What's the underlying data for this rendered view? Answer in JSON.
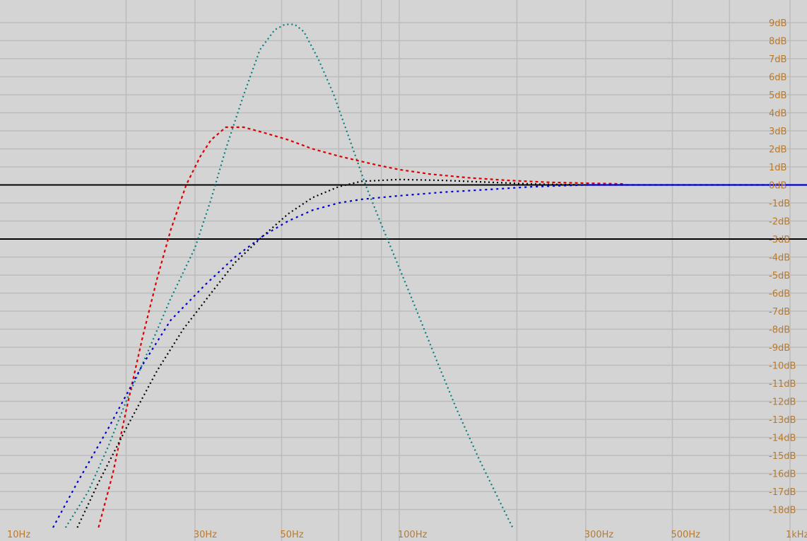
{
  "chart_data": {
    "type": "line",
    "title": "",
    "xlabel": "",
    "ylabel": "",
    "x_scale": "log",
    "xlim": [
      10,
      1000
    ],
    "ylim": [
      -19,
      9.5
    ],
    "grid": true,
    "x_ticks": [
      {
        "value": 10,
        "label": "10Hz"
      },
      {
        "value": 30,
        "label": "30Hz"
      },
      {
        "value": 50,
        "label": "50Hz"
      },
      {
        "value": 100,
        "label": "100Hz"
      },
      {
        "value": 300,
        "label": "300Hz"
      },
      {
        "value": 500,
        "label": "500Hz"
      },
      {
        "value": 1000,
        "label": "1kHz"
      }
    ],
    "y_ticks": [
      {
        "value": 9,
        "label": "9dB"
      },
      {
        "value": 8,
        "label": "8dB"
      },
      {
        "value": 7,
        "label": "7dB"
      },
      {
        "value": 6,
        "label": "6dB"
      },
      {
        "value": 5,
        "label": "5dB"
      },
      {
        "value": 4,
        "label": "4dB"
      },
      {
        "value": 3,
        "label": "3dB"
      },
      {
        "value": 2,
        "label": "2dB"
      },
      {
        "value": 1,
        "label": "1dB"
      },
      {
        "value": 0,
        "label": "0dB"
      },
      {
        "value": -1,
        "label": "-1dB"
      },
      {
        "value": -2,
        "label": "-2dB"
      },
      {
        "value": -3,
        "label": "-3dB"
      },
      {
        "value": -4,
        "label": "-4dB"
      },
      {
        "value": -5,
        "label": "-5dB"
      },
      {
        "value": -6,
        "label": "-6dB"
      },
      {
        "value": -7,
        "label": "-7dB"
      },
      {
        "value": -8,
        "label": "-8dB"
      },
      {
        "value": -9,
        "label": "-9dB"
      },
      {
        "value": -10,
        "label": "-10dB"
      },
      {
        "value": -11,
        "label": "-11dB"
      },
      {
        "value": -12,
        "label": "-12dB"
      },
      {
        "value": -13,
        "label": "-13dB"
      },
      {
        "value": -14,
        "label": "-14dB"
      },
      {
        "value": -15,
        "label": "-15dB"
      },
      {
        "value": -16,
        "label": "-16dB"
      },
      {
        "value": -17,
        "label": "-17dB"
      },
      {
        "value": -18,
        "label": "-18dB"
      }
    ],
    "reference_lines": [
      {
        "y": 0,
        "color": "#000000"
      },
      {
        "y": -3,
        "color": "#000000"
      }
    ],
    "series": [
      {
        "color": "#008080",
        "dash": "2 4",
        "points": [
          [
            14,
            -19
          ],
          [
            16,
            -17
          ],
          [
            18,
            -14.5
          ],
          [
            20,
            -12
          ],
          [
            23,
            -9
          ],
          [
            26,
            -6.3
          ],
          [
            30,
            -3.5
          ],
          [
            33,
            -0.8
          ],
          [
            36,
            2
          ],
          [
            40,
            5
          ],
          [
            44,
            7.5
          ],
          [
            48,
            8.6
          ],
          [
            51,
            8.9
          ],
          [
            54,
            8.9
          ],
          [
            57,
            8.5
          ],
          [
            62,
            7
          ],
          [
            68,
            5
          ],
          [
            75,
            2.4
          ],
          [
            82,
            0
          ],
          [
            90,
            -2.2
          ],
          [
            100,
            -4.6
          ],
          [
            110,
            -6.8
          ],
          [
            125,
            -9.8
          ],
          [
            140,
            -12.4
          ],
          [
            160,
            -15.2
          ],
          [
            185,
            -18
          ],
          [
            195,
            -19
          ]
        ]
      },
      {
        "color": "#e00000",
        "dash": "4 4",
        "points": [
          [
            17,
            -19
          ],
          [
            18.5,
            -16
          ],
          [
            20,
            -12.5
          ],
          [
            22,
            -8.5
          ],
          [
            24,
            -5.2
          ],
          [
            26,
            -2.5
          ],
          [
            28.5,
            0
          ],
          [
            31,
            1.6
          ],
          [
            33,
            2.5
          ],
          [
            36,
            3.2
          ],
          [
            40,
            3.2
          ],
          [
            45,
            2.9
          ],
          [
            52,
            2.5
          ],
          [
            60,
            2
          ],
          [
            70,
            1.6
          ],
          [
            80,
            1.3
          ],
          [
            90,
            1.05
          ],
          [
            100,
            0.85
          ],
          [
            120,
            0.6
          ],
          [
            150,
            0.4
          ],
          [
            190,
            0.25
          ],
          [
            240,
            0.15
          ],
          [
            300,
            0.1
          ],
          [
            380,
            0.05
          ]
        ]
      },
      {
        "color": "#000000",
        "dash": "2 4",
        "points": [
          [
            15,
            -19
          ],
          [
            17,
            -16.5
          ],
          [
            20,
            -13.5
          ],
          [
            24,
            -10.3
          ],
          [
            28,
            -8
          ],
          [
            33,
            -6
          ],
          [
            38,
            -4.3
          ],
          [
            45,
            -2.8
          ],
          [
            52,
            -1.6
          ],
          [
            60,
            -0.7
          ],
          [
            70,
            -0.1
          ],
          [
            80,
            0.2
          ],
          [
            100,
            0.3
          ],
          [
            130,
            0.25
          ],
          [
            170,
            0.15
          ],
          [
            220,
            0.05
          ],
          [
            300,
            0
          ]
        ]
      },
      {
        "color": "#0000d0",
        "dash": "3 5",
        "points": [
          [
            13,
            -19
          ],
          [
            15,
            -16.5
          ],
          [
            18,
            -13.5
          ],
          [
            22,
            -10
          ],
          [
            26,
            -7.5
          ],
          [
            32,
            -5.5
          ],
          [
            38,
            -4
          ],
          [
            45,
            -2.8
          ],
          [
            52,
            -2
          ],
          [
            60,
            -1.4
          ],
          [
            70,
            -1
          ],
          [
            80,
            -0.8
          ],
          [
            100,
            -0.6
          ],
          [
            130,
            -0.4
          ],
          [
            170,
            -0.25
          ],
          [
            220,
            -0.1
          ],
          [
            300,
            0
          ],
          [
            1000,
            0
          ]
        ]
      }
    ]
  }
}
